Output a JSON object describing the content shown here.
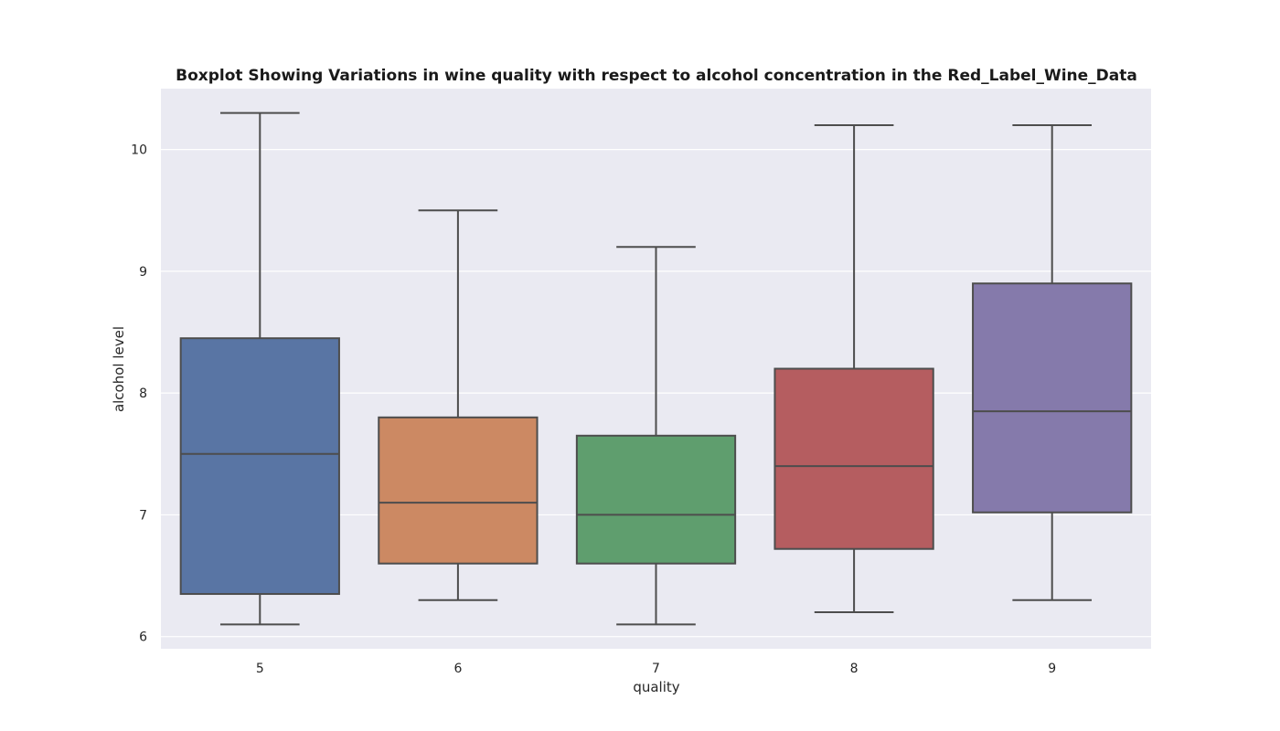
{
  "chart_data": {
    "type": "boxplot",
    "title": "Boxplot Showing Variations in wine quality with respect to alcohol concentration in the Red_Label_Wine_Data",
    "xlabel": "quality",
    "ylabel": "alcohol level",
    "categories": [
      "5",
      "6",
      "7",
      "8",
      "9"
    ],
    "y_ticks": [
      6,
      7,
      8,
      9,
      10
    ],
    "ylim": [
      5.9,
      10.5
    ],
    "grid": true,
    "legend": "none",
    "boxes": [
      {
        "category": "5",
        "whisker_low": 6.1,
        "q1": 6.35,
        "median": 7.5,
        "q3": 8.45,
        "whisker_high": 10.3,
        "color": "#5975a4"
      },
      {
        "category": "6",
        "whisker_low": 6.3,
        "q1": 6.6,
        "median": 7.1,
        "q3": 7.8,
        "whisker_high": 9.5,
        "color": "#cc8963"
      },
      {
        "category": "7",
        "whisker_low": 6.1,
        "q1": 6.6,
        "median": 7.0,
        "q3": 7.65,
        "whisker_high": 9.2,
        "color": "#5f9e6e"
      },
      {
        "category": "8",
        "whisker_low": 6.2,
        "q1": 6.72,
        "median": 7.4,
        "q3": 8.2,
        "whisker_high": 10.2,
        "color": "#b55d60"
      },
      {
        "category": "9",
        "whisker_low": 6.3,
        "q1": 7.02,
        "median": 7.85,
        "q3": 8.9,
        "whisker_high": 10.2,
        "color": "#857aab"
      }
    ],
    "colors": {
      "plot_background": "#eaeaf2",
      "grid": "#ffffff",
      "line": "#4d4d4d"
    }
  }
}
